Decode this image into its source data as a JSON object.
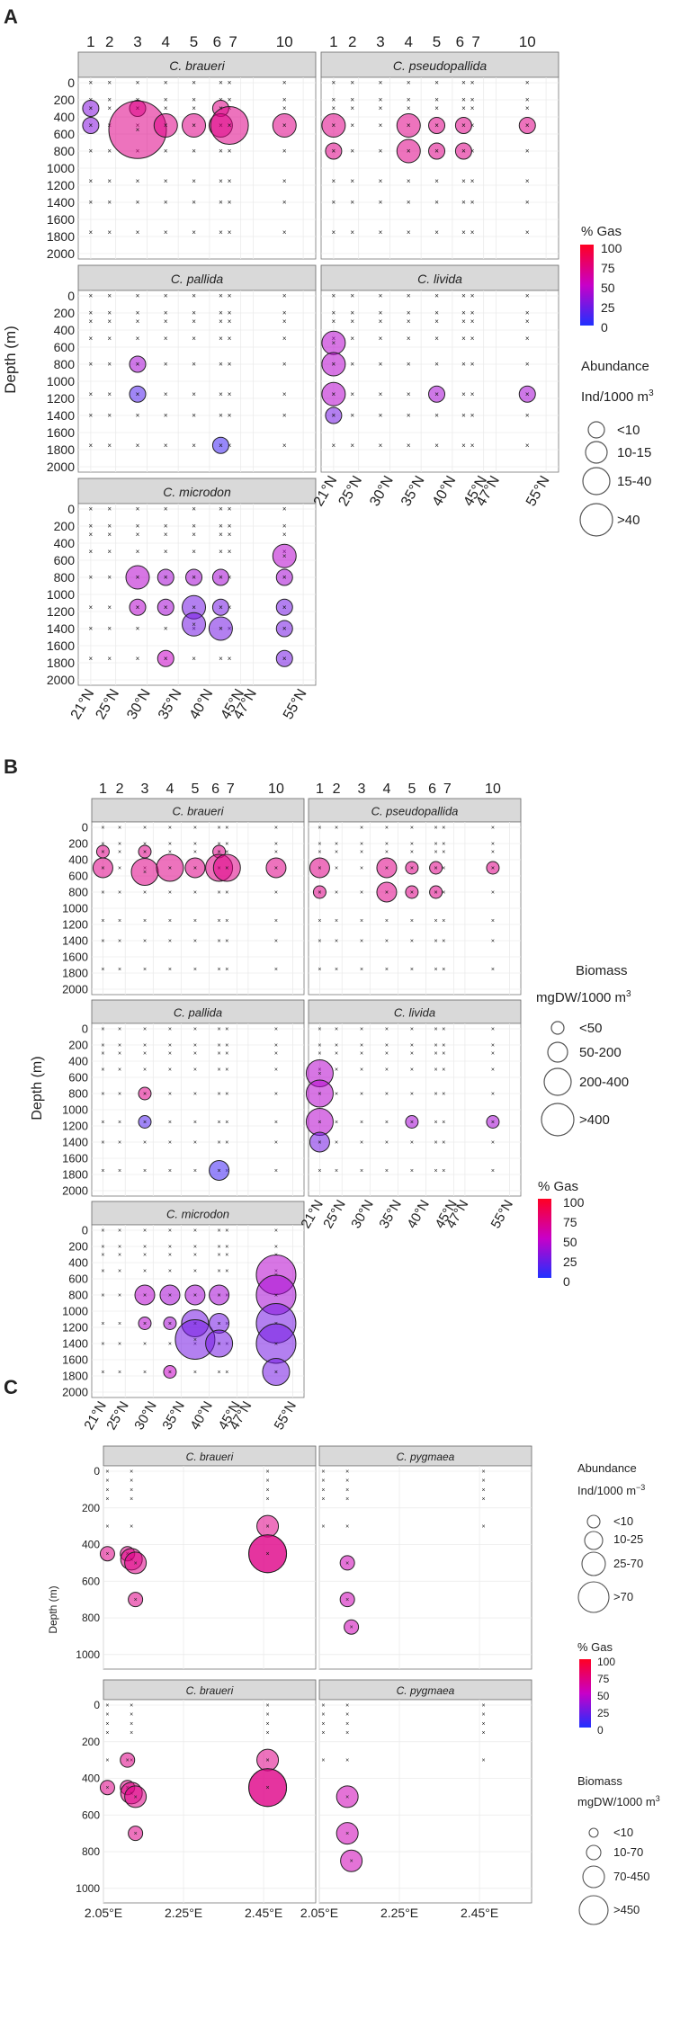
{
  "figure": {
    "panel_labels": [
      "A",
      "B",
      "C"
    ],
    "ylabel": "Depth (m)",
    "gas_title": "% Gas",
    "gas_ticks": [
      "100",
      "75",
      "50",
      "25",
      "0"
    ],
    "abundance_title": "Abundance",
    "abundance_unit": "Ind/1000 m",
    "abundance_unit_c": "Ind/1000 m",
    "abundance_unit_c_sup": "−3",
    "biomass_title": "Biomass",
    "biomass_unit": "mgDW/1000 m",
    "unit_sup": "3",
    "legend_A_abundance": [
      "<10",
      "10-15",
      "15-40",
      ">40"
    ],
    "legend_B_biomass": [
      "<50",
      "50-200",
      "200-400",
      ">400"
    ],
    "legend_C_abundance": [
      "<10",
      "10-25",
      "25-70",
      ">70"
    ],
    "legend_C_biomass": [
      "<10",
      "10-70",
      "70-450",
      ">450"
    ]
  },
  "chart_data": [
    {
      "id": "A",
      "type": "scatter",
      "ylabel": "Depth (m)",
      "station_labels": [
        "1",
        "2",
        "3",
        "4",
        "5",
        "6",
        "7",
        "10"
      ],
      "station_lat": [
        21,
        24,
        28.5,
        33,
        37.5,
        41.8,
        43.2,
        52
      ],
      "lat_ticks": [
        "21°N",
        "25°N",
        "30°N",
        "35°N",
        "40°N",
        "45°N",
        "47°N",
        "55°N"
      ],
      "lat_tick_values": [
        21,
        25,
        30,
        35,
        40,
        45,
        47,
        55
      ],
      "depth_ticks": [
        0,
        200,
        400,
        600,
        800,
        1000,
        1200,
        1400,
        1600,
        1800,
        2000
      ],
      "panels": [
        {
          "species": "C. braueri",
          "points": [
            [
              21,
              300,
              30,
              1
            ],
            [
              21,
              500,
              30,
              1
            ],
            [
              28.5,
              300,
              70,
              1
            ],
            [
              28.5,
              550,
              70,
              4
            ],
            [
              33,
              500,
              70,
              2
            ],
            [
              37.5,
              500,
              70,
              2
            ],
            [
              41.8,
              300,
              70,
              1
            ],
            [
              41.8,
              500,
              70,
              2
            ],
            [
              43.2,
              500,
              70,
              3
            ],
            [
              52,
              500,
              70,
              2
            ]
          ]
        },
        {
          "species": "C. pseudopallida",
          "points": [
            [
              21,
              500,
              70,
              2
            ],
            [
              21,
              800,
              70,
              1
            ],
            [
              33,
              500,
              70,
              2
            ],
            [
              33,
              800,
              70,
              2
            ],
            [
              37.5,
              500,
              70,
              1
            ],
            [
              37.5,
              800,
              70,
              1
            ],
            [
              41.8,
              500,
              70,
              1
            ],
            [
              41.8,
              800,
              70,
              1
            ],
            [
              52,
              500,
              70,
              1
            ]
          ]
        },
        {
          "species": "C. pallida",
          "points": [
            [
              28.5,
              800,
              40,
              1
            ],
            [
              28.5,
              1150,
              15,
              1
            ],
            [
              41.8,
              1750,
              10,
              1
            ]
          ]
        },
        {
          "species": "C. livida",
          "points": [
            [
              21,
              550,
              45,
              2
            ],
            [
              21,
              800,
              45,
              2
            ],
            [
              21,
              1150,
              45,
              2
            ],
            [
              21,
              1400,
              25,
              1
            ],
            [
              37.5,
              1150,
              40,
              1
            ],
            [
              52,
              1150,
              40,
              1
            ]
          ]
        },
        {
          "species": "C. microdon",
          "points": [
            [
              28.5,
              800,
              45,
              2
            ],
            [
              28.5,
              1150,
              45,
              1
            ],
            [
              33,
              800,
              40,
              1
            ],
            [
              33,
              1150,
              40,
              1
            ],
            [
              33,
              1750,
              50,
              1
            ],
            [
              37.5,
              800,
              40,
              1
            ],
            [
              37.5,
              1150,
              25,
              2
            ],
            [
              37.5,
              1350,
              25,
              2
            ],
            [
              41.8,
              800,
              40,
              1
            ],
            [
              41.8,
              1150,
              25,
              1
            ],
            [
              41.8,
              1400,
              25,
              2
            ],
            [
              52,
              550,
              45,
              2
            ],
            [
              52,
              800,
              40,
              1
            ],
            [
              52,
              1150,
              25,
              1
            ],
            [
              52,
              1400,
              25,
              1
            ],
            [
              52,
              1750,
              25,
              1
            ]
          ]
        }
      ]
    },
    {
      "id": "B",
      "type": "scatter",
      "ylabel": "Depth (m)",
      "station_labels": [
        "1",
        "2",
        "3",
        "4",
        "5",
        "6",
        "7",
        "10"
      ],
      "station_lat": [
        21,
        24,
        28.5,
        33,
        37.5,
        41.8,
        43.2,
        52
      ],
      "lat_ticks": [
        "21°N",
        "25°N",
        "30°N",
        "35°N",
        "40°N",
        "45°N",
        "47°N",
        "55°N"
      ],
      "lat_tick_values": [
        21,
        25,
        30,
        35,
        40,
        45,
        47,
        55
      ],
      "depth_ticks": [
        0,
        200,
        400,
        600,
        800,
        1000,
        1200,
        1400,
        1600,
        1800,
        2000
      ],
      "panels": [
        {
          "species": "C. braueri",
          "points": [
            [
              21,
              300,
              70,
              1
            ],
            [
              21,
              500,
              70,
              2
            ],
            [
              28.5,
              300,
              70,
              1
            ],
            [
              28.5,
              550,
              70,
              3
            ],
            [
              33,
              500,
              70,
              3
            ],
            [
              37.5,
              500,
              70,
              2
            ],
            [
              41.8,
              300,
              70,
              1
            ],
            [
              41.8,
              500,
              70,
              3
            ],
            [
              43.2,
              500,
              70,
              3
            ],
            [
              52,
              500,
              70,
              2
            ]
          ]
        },
        {
          "species": "C. pseudopallida",
          "points": [
            [
              21,
              500,
              70,
              2
            ],
            [
              21,
              800,
              70,
              1
            ],
            [
              33,
              500,
              70,
              2
            ],
            [
              33,
              800,
              70,
              2
            ],
            [
              37.5,
              500,
              70,
              1
            ],
            [
              37.5,
              800,
              70,
              1
            ],
            [
              41.8,
              500,
              70,
              1
            ],
            [
              41.8,
              800,
              70,
              1
            ],
            [
              52,
              500,
              70,
              1
            ]
          ]
        },
        {
          "species": "C. pallida",
          "points": [
            [
              28.5,
              800,
              70,
              1
            ],
            [
              28.5,
              1150,
              15,
              1
            ],
            [
              41.8,
              1750,
              10,
              2
            ]
          ]
        },
        {
          "species": "C. livida",
          "points": [
            [
              21,
              550,
              45,
              3
            ],
            [
              21,
              800,
              45,
              3
            ],
            [
              21,
              1150,
              45,
              3
            ],
            [
              21,
              1400,
              25,
              2
            ],
            [
              37.5,
              1150,
              40,
              1
            ],
            [
              52,
              1150,
              40,
              1
            ]
          ]
        },
        {
          "species": "C. microdon",
          "points": [
            [
              28.5,
              800,
              45,
              2
            ],
            [
              28.5,
              1150,
              45,
              1
            ],
            [
              33,
              800,
              40,
              2
            ],
            [
              33,
              1150,
              40,
              1
            ],
            [
              33,
              1750,
              50,
              1
            ],
            [
              37.5,
              800,
              40,
              2
            ],
            [
              37.5,
              1150,
              25,
              3
            ],
            [
              37.5,
              1350,
              25,
              4
            ],
            [
              41.8,
              800,
              40,
              2
            ],
            [
              41.8,
              1150,
              25,
              2
            ],
            [
              41.8,
              1400,
              25,
              3
            ],
            [
              52,
              550,
              45,
              4
            ],
            [
              52,
              800,
              40,
              4
            ],
            [
              52,
              1150,
              25,
              4
            ],
            [
              52,
              1400,
              25,
              4
            ],
            [
              52,
              1750,
              25,
              3
            ]
          ]
        }
      ]
    },
    {
      "id": "C",
      "type": "scatter",
      "ylabel": "Depth (m)",
      "x_ticks": [
        "2.05°E",
        "2.25°E",
        "2.45°E"
      ],
      "x_tick_values": [
        2.05,
        2.25,
        2.45
      ],
      "xlim": [
        2.05,
        2.58
      ],
      "depth_ticks": [
        0,
        200,
        400,
        600,
        800,
        1000
      ],
      "panels": [
        {
          "species": "C. braueri",
          "points": [
            [
              2.06,
              450,
              70,
              1
            ],
            [
              2.11,
              450,
              70,
              1
            ],
            [
              2.12,
              480,
              70,
              2
            ],
            [
              2.13,
              500,
              70,
              2
            ],
            [
              2.13,
              700,
              70,
              1
            ],
            [
              2.46,
              300,
              70,
              2
            ],
            [
              2.46,
              450,
              70,
              4
            ],
            [
              2.46,
              450,
              70,
              4
            ]
          ]
        },
        {
          "species": "C. pygmaea",
          "points": [
            [
              2.12,
              500,
              55,
              1
            ],
            [
              2.12,
              700,
              55,
              1
            ],
            [
              2.13,
              850,
              55,
              1
            ]
          ]
        },
        {
          "species": "C. braueri",
          "points": [
            [
              2.06,
              450,
              70,
              1
            ],
            [
              2.11,
              300,
              70,
              1
            ],
            [
              2.11,
              450,
              70,
              1
            ],
            [
              2.12,
              480,
              70,
              2
            ],
            [
              2.13,
              500,
              70,
              2
            ],
            [
              2.13,
              700,
              70,
              1
            ],
            [
              2.46,
              300,
              70,
              2
            ],
            [
              2.46,
              450,
              70,
              4
            ],
            [
              2.46,
              450,
              70,
              4
            ]
          ]
        },
        {
          "species": "C. pygmaea",
          "points": [
            [
              2.12,
              500,
              55,
              2
            ],
            [
              2.12,
              700,
              55,
              2
            ],
            [
              2.13,
              850,
              55,
              2
            ]
          ]
        }
      ]
    }
  ]
}
